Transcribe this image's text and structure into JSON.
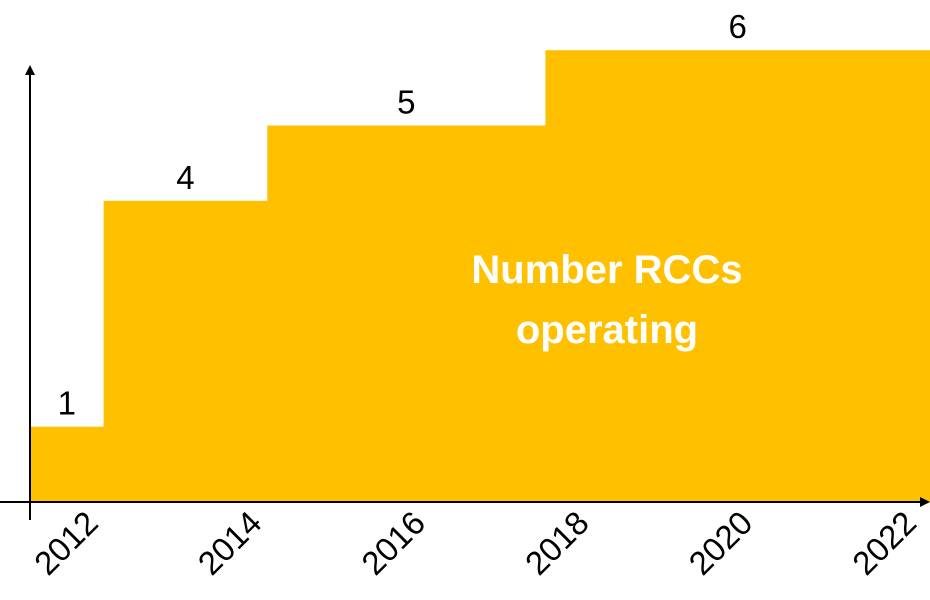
{
  "chart_data": {
    "type": "area",
    "series": [
      {
        "name": "Number RCCs operating",
        "steps": [
          {
            "x_start": 2012.0,
            "x_end": 2012.9,
            "value": 1
          },
          {
            "x_start": 2012.9,
            "x_end": 2014.9,
            "value": 4
          },
          {
            "x_start": 2014.9,
            "x_end": 2018.3,
            "value": 5
          },
          {
            "x_start": 2018.3,
            "x_end": 2023.0,
            "value": 6
          }
        ]
      }
    ],
    "x_ticks": [
      "2012",
      "2014",
      "2016",
      "2018",
      "2020",
      "2022"
    ],
    "xlim": [
      2012,
      2023
    ],
    "ylim": [
      0,
      6.6
    ],
    "inner_label": [
      "Number RCCs",
      "operating"
    ],
    "fill_color": "#FFC000",
    "grid": false,
    "legend": "none"
  }
}
